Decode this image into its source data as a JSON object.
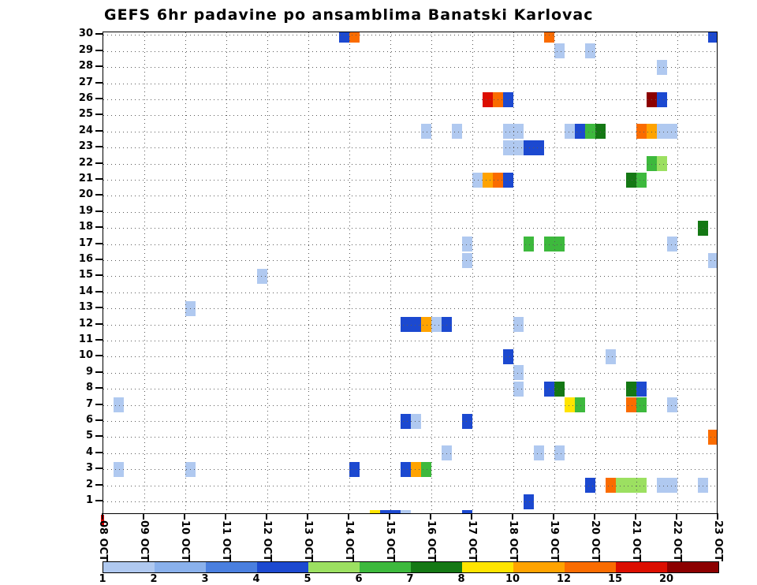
{
  "chart_data": {
    "type": "heatmap",
    "title": "GEFS 6hr padavine po ansamblima Banatski Karlovac",
    "x_axis": {
      "tick_labels": [
        "08 OCT",
        "09 OCT",
        "10 OCT",
        "11 OCT",
        "12 OCT",
        "13 OCT",
        "14 OCT",
        "15 OCT",
        "16 OCT",
        "17 OCT",
        "18 OCT",
        "19 OCT",
        "20 OCT",
        "21 OCT",
        "22 OCT",
        "23 OCT"
      ],
      "steps_per_day": 4,
      "n_steps": 60
    },
    "y_axis": {
      "tick_labels": [
        "1",
        "2",
        "3",
        "4",
        "5",
        "6",
        "7",
        "8",
        "9",
        "10",
        "11",
        "12",
        "13",
        "14",
        "15",
        "16",
        "17",
        "18",
        "19",
        "20",
        "21",
        "22",
        "23",
        "24",
        "25",
        "26",
        "27",
        "28",
        "29",
        "30"
      ]
    },
    "legend": {
      "tick_labels": [
        "1",
        "2",
        "3",
        "4",
        "5",
        "6",
        "7",
        "8",
        "10",
        "12",
        "15",
        "20"
      ],
      "colors": [
        "#b0c9f0",
        "#8ab1ec",
        "#4a7fdf",
        "#1c49d0",
        "#9ce061",
        "#3db93d",
        "#147814",
        "#ffe400",
        "#ffa300",
        "#fa6c00",
        "#dc0e00",
        "#8c0000"
      ]
    },
    "palette": {
      "1": "#b0c9f0",
      "2": "#8ab1ec",
      "3": "#4a7fdf",
      "4": "#1c49d0",
      "5": "#9ce061",
      "6": "#3db93d",
      "7": "#147814",
      "8": "#ffe400",
      "10": "#ffa300",
      "12": "#fa6c00",
      "15": "#dc0e00",
      "20": "#8c0000"
    },
    "cells_format": [
      "ensemble_member_row",
      "timestep_6hr_from_08OCT",
      "precip_value_mm"
    ],
    "cells": [
      [
        30,
        23,
        4
      ],
      [
        30,
        24,
        12
      ],
      [
        30,
        43,
        12
      ],
      [
        30,
        59,
        4
      ],
      [
        29,
        44,
        1
      ],
      [
        29,
        47,
        1
      ],
      [
        28,
        54,
        1
      ],
      [
        26,
        37,
        15
      ],
      [
        26,
        38,
        12
      ],
      [
        26,
        39,
        4
      ],
      [
        26,
        53,
        20
      ],
      [
        26,
        54,
        4
      ],
      [
        24,
        31,
        1
      ],
      [
        24,
        34,
        1
      ],
      [
        24,
        39,
        1
      ],
      [
        24,
        40,
        1
      ],
      [
        24,
        45,
        1
      ],
      [
        24,
        46,
        4
      ],
      [
        24,
        47,
        6
      ],
      [
        24,
        48,
        7
      ],
      [
        24,
        52,
        12
      ],
      [
        24,
        53,
        10
      ],
      [
        24,
        54,
        1
      ],
      [
        24,
        55,
        1
      ],
      [
        23,
        39,
        1
      ],
      [
        23,
        40,
        1
      ],
      [
        23,
        41,
        4
      ],
      [
        23,
        42,
        4
      ],
      [
        22,
        53,
        6
      ],
      [
        22,
        54,
        5
      ],
      [
        21,
        36,
        1
      ],
      [
        21,
        37,
        10
      ],
      [
        21,
        38,
        12
      ],
      [
        21,
        39,
        4
      ],
      [
        21,
        51,
        7
      ],
      [
        21,
        52,
        6
      ],
      [
        18,
        58,
        7
      ],
      [
        17,
        35,
        1
      ],
      [
        17,
        41,
        6
      ],
      [
        17,
        43,
        6
      ],
      [
        17,
        44,
        6
      ],
      [
        17,
        55,
        1
      ],
      [
        16,
        35,
        1
      ],
      [
        16,
        59,
        1
      ],
      [
        15,
        15,
        1
      ],
      [
        13,
        8,
        1
      ],
      [
        12,
        29,
        4
      ],
      [
        12,
        30,
        4
      ],
      [
        12,
        31,
        10
      ],
      [
        12,
        32,
        1
      ],
      [
        12,
        33,
        4
      ],
      [
        12,
        40,
        1
      ],
      [
        10,
        39,
        4
      ],
      [
        10,
        49,
        1
      ],
      [
        9,
        40,
        1
      ],
      [
        8,
        40,
        1
      ],
      [
        8,
        43,
        4
      ],
      [
        8,
        44,
        7
      ],
      [
        8,
        51,
        7
      ],
      [
        8,
        52,
        4
      ],
      [
        7,
        1,
        1
      ],
      [
        7,
        45,
        8
      ],
      [
        7,
        46,
        6
      ],
      [
        7,
        51,
        12
      ],
      [
        7,
        52,
        6
      ],
      [
        7,
        55,
        1
      ],
      [
        6,
        29,
        4
      ],
      [
        6,
        30,
        1
      ],
      [
        6,
        35,
        4
      ],
      [
        5,
        59,
        12
      ],
      [
        4,
        33,
        1
      ],
      [
        4,
        42,
        1
      ],
      [
        4,
        44,
        1
      ],
      [
        3,
        1,
        1
      ],
      [
        3,
        8,
        1
      ],
      [
        3,
        24,
        4
      ],
      [
        3,
        29,
        4
      ],
      [
        3,
        30,
        10
      ],
      [
        3,
        31,
        6
      ],
      [
        2,
        47,
        4
      ],
      [
        2,
        49,
        12
      ],
      [
        2,
        50,
        5
      ],
      [
        2,
        51,
        5
      ],
      [
        2,
        52,
        5
      ],
      [
        2,
        54,
        1
      ],
      [
        2,
        55,
        1
      ],
      [
        2,
        58,
        1
      ],
      [
        1,
        41,
        4
      ],
      [
        0,
        26,
        8
      ],
      [
        0,
        27,
        4
      ],
      [
        0,
        28,
        4
      ],
      [
        0,
        29,
        1
      ],
      [
        0,
        35,
        4
      ]
    ]
  },
  "marker": {
    "color": "#e00000"
  }
}
